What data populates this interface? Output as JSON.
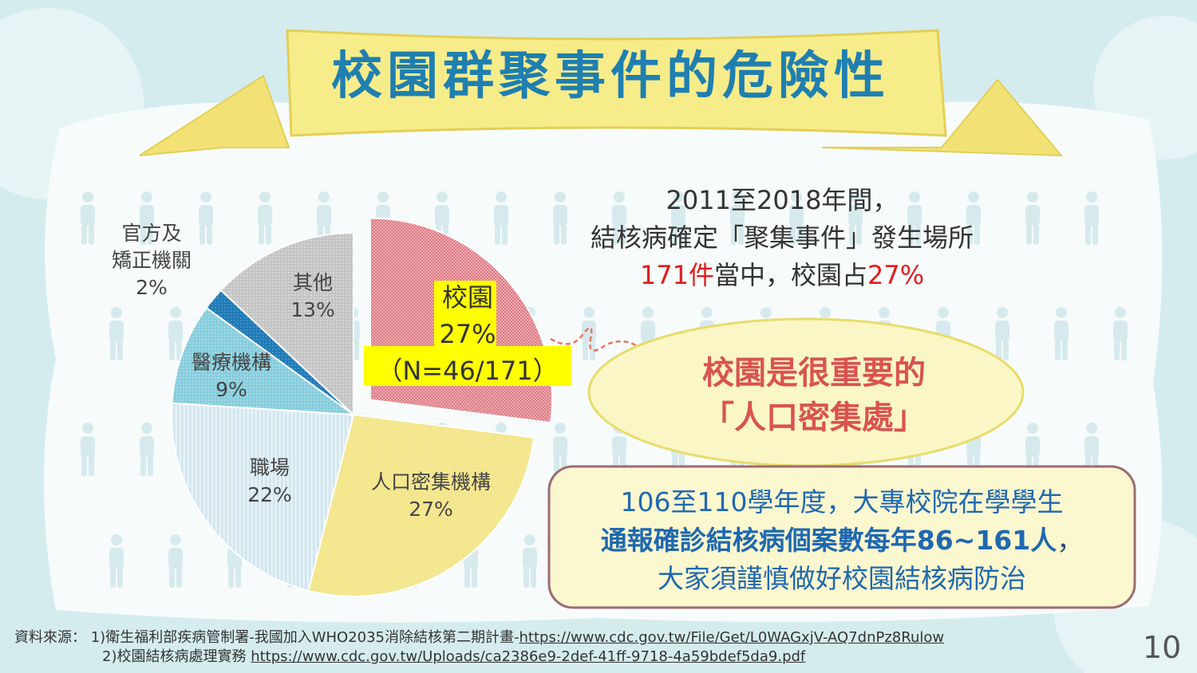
{
  "title": "校園群聚事件的危險性",
  "stat": {
    "line1": "2011至2018年間，",
    "line2": "結核病確定「聚集事件」發生場所",
    "line3_a": "171件",
    "line3_b": "當中，校園占",
    "line3_c": "27%"
  },
  "bubble": {
    "line1": "校園是很重要的",
    "line2": "「人口密集處」"
  },
  "box": {
    "line1": "106至110學年度，大專校院在學學生",
    "line2_bold": "通報確診結核病個案數每年86~161人",
    "line2_tail": "，",
    "line3": "大家須謹慎做好校園結核病防治"
  },
  "source": {
    "label": "資料來源：",
    "ref1_text": "1)衛生福利部疾病管制署-我國加入WHO2035消除結核第二期計畫-",
    "ref1_url": "https://www.cdc.gov.tw/File/Get/L0WAGxjV-AQ7dnPz8Rulow",
    "ref2_text": "2)校園結核病處理實務 ",
    "ref2_url": "https://www.cdc.gov.tw/Uploads/ca2386e9-2def-41ff-9718-4a59bdef5da9.pdf"
  },
  "page_number": "10",
  "colors": {
    "title": "#1f7fb0",
    "banner": "#f7ec8a",
    "campus": "#e07b85",
    "dense": "#f5e680",
    "workplace": "#d8e8f0",
    "medical": "#8fd0de",
    "correctional": "#1f7bb8",
    "other": "#c8c8c8",
    "highlight_red": "#e21b1b"
  },
  "chart_data": {
    "type": "pie",
    "total_label": "N=46/171",
    "slices": [
      {
        "name": "校園",
        "value": 27,
        "label_lines": [
          "校園",
          "27%",
          "（N=46/171）"
        ],
        "exploded": true,
        "highlighted": true
      },
      {
        "name": "人口密集機構",
        "value": 27,
        "label_lines": [
          "人口密集機構",
          "27%"
        ]
      },
      {
        "name": "職場",
        "value": 22,
        "label_lines": [
          "職場",
          "22%"
        ]
      },
      {
        "name": "醫療機構",
        "value": 9,
        "label_lines": [
          "醫療機構",
          "9%"
        ]
      },
      {
        "name": "官方及矯正機關",
        "value": 2,
        "label_lines": [
          "官方及",
          "矯正機關",
          "2%"
        ]
      },
      {
        "name": "其他",
        "value": 13,
        "label_lines": [
          "其他",
          "13%"
        ]
      }
    ]
  }
}
